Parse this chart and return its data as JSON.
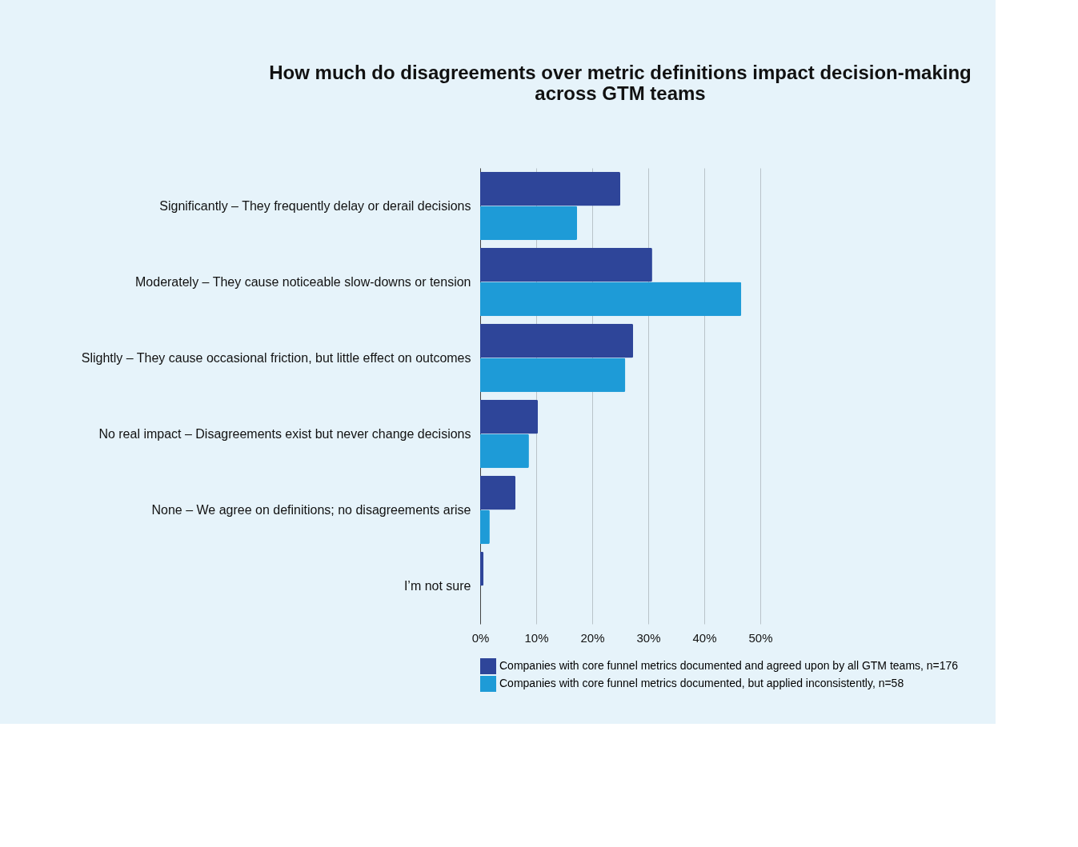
{
  "chart_data": {
    "type": "bar",
    "orientation": "horizontal",
    "title": "How much do disagreements over metric definitions impact decision-making across GTM teams",
    "categories": [
      "Significantly – They frequently delay or derail decisions",
      "Moderately – They cause noticeable slow-downs or tension",
      "Slightly – They cause occasional friction, but little effect on outcomes",
      "No real impact – Disagreements exist but never change decisions",
      "None – We agree on definitions; no disagreements arise",
      "I’m not sure"
    ],
    "series": [
      {
        "name": "Companies with core funnel metrics documented and agreed upon by all GTM teams, n=176",
        "color": "#2e4599",
        "values": [
          25.0,
          30.7,
          27.3,
          10.3,
          6.3,
          0.6
        ]
      },
      {
        "name": "Companies with core funnel metrics documented, but applied inconsistently, n=58",
        "color": "#1e9bd7",
        "values": [
          17.3,
          46.6,
          25.9,
          8.7,
          1.7,
          0
        ]
      }
    ],
    "xlim": [
      0,
      50
    ],
    "xticks": [
      {
        "value": 0,
        "label": "0%"
      },
      {
        "value": 10,
        "label": "10%"
      },
      {
        "value": 20,
        "label": "20%"
      },
      {
        "value": 30,
        "label": "30%"
      },
      {
        "value": 40,
        "label": "40%"
      },
      {
        "value": 50,
        "label": "50%"
      }
    ],
    "grid": "x",
    "legend": "bottom"
  }
}
